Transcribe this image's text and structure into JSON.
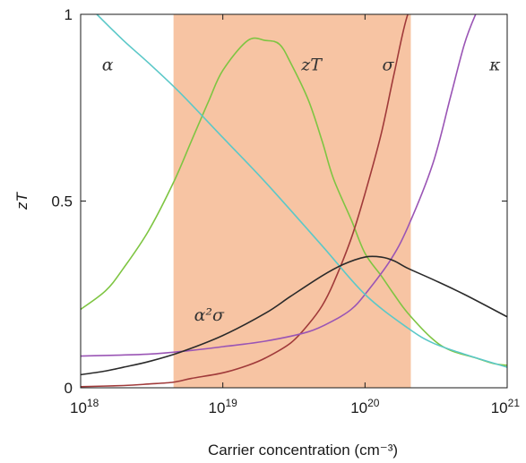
{
  "chart_data": {
    "type": "line",
    "title": "",
    "xlabel": "Carrier concentration (cm⁻³)",
    "ylabel": "zT",
    "x_scale": "log",
    "xlim": [
      1e+18,
      1e+21
    ],
    "ylim": [
      0,
      1
    ],
    "grid": false,
    "legend": "none",
    "x_ticks": [
      {
        "value": 1e+18,
        "base": "10",
        "exp": "18"
      },
      {
        "value": 1e+19,
        "base": "10",
        "exp": "19"
      },
      {
        "value": 1e+20,
        "base": "10",
        "exp": "20"
      },
      {
        "value": 1e+21,
        "base": "10",
        "exp": "21"
      }
    ],
    "y_ticks": [
      {
        "value": 0,
        "label": "0"
      },
      {
        "value": 0.5,
        "label": "0.5"
      },
      {
        "value": 1,
        "label": "1"
      }
    ],
    "shaded_region": {
      "x": [
        4.5e+18,
        2.1e+20
      ],
      "color": "#f7c4a3"
    },
    "series": [
      {
        "label": "zT",
        "color": "#7ec542",
        "x": [
          1e+18,
          1.5e+18,
          2e+18,
          3e+18,
          4.5e+18,
          6e+18,
          8e+18,
          1e+19,
          1.5e+19,
          2e+19,
          2.5e+19,
          3e+19,
          4e+19,
          5e+19,
          6e+19,
          8e+19,
          1e+20,
          1.3e+20,
          1.6e+20,
          2e+20,
          3e+20,
          4e+20,
          6e+20,
          8e+20,
          1e+21
        ],
        "y": [
          0.21,
          0.26,
          0.32,
          0.42,
          0.55,
          0.66,
          0.77,
          0.85,
          0.93,
          0.93,
          0.92,
          0.87,
          0.77,
          0.66,
          0.56,
          0.45,
          0.36,
          0.3,
          0.25,
          0.2,
          0.13,
          0.1,
          0.08,
          0.065,
          0.06
        ]
      },
      {
        "label": "σ",
        "color": "#a03a3a",
        "x": [
          1e+18,
          2e+18,
          3e+18,
          4.5e+18,
          6e+18,
          1e+19,
          1.5e+19,
          2e+19,
          3e+19,
          4e+19,
          5e+19,
          6e+19,
          8e+19,
          1e+20,
          1.3e+20,
          1.6e+20,
          2e+20,
          2.5e+20
        ],
        "y": [
          0.003,
          0.006,
          0.01,
          0.015,
          0.025,
          0.04,
          0.06,
          0.08,
          0.12,
          0.17,
          0.22,
          0.28,
          0.4,
          0.52,
          0.68,
          0.84,
          1.0,
          1.05
        ]
      },
      {
        "label": "κ",
        "color": "#9a55b5",
        "x": [
          1e+18,
          3e+18,
          6e+18,
          1e+19,
          2e+19,
          4e+19,
          6e+19,
          8e+19,
          1e+20,
          1.5e+20,
          2e+20,
          3e+20,
          4e+20,
          5e+20,
          6e+20,
          7e+20
        ],
        "y": [
          0.085,
          0.09,
          0.1,
          0.11,
          0.125,
          0.15,
          0.18,
          0.21,
          0.25,
          0.34,
          0.43,
          0.6,
          0.78,
          0.92,
          1.0,
          1.05
        ]
      },
      {
        "label": "α",
        "color": "#5bc8c8",
        "x": [
          1.3e+18,
          2e+18,
          3e+18,
          5e+18,
          1e+19,
          2e+19,
          5e+19,
          1e+20,
          2e+20,
          3e+20,
          5e+20,
          1e+21
        ],
        "y": [
          1.0,
          0.93,
          0.87,
          0.79,
          0.67,
          0.55,
          0.38,
          0.25,
          0.16,
          0.12,
          0.09,
          0.055
        ]
      },
      {
        "label": "α²σ",
        "color": "#2a2a2a",
        "x": [
          1e+18,
          1.5e+18,
          2e+18,
          3e+18,
          5e+18,
          1e+19,
          2e+19,
          3e+19,
          5e+19,
          7e+19,
          1e+20,
          1.3e+20,
          1.6e+20,
          2e+20,
          3e+20,
          5e+20,
          1e+21
        ],
        "y": [
          0.035,
          0.045,
          0.055,
          0.07,
          0.095,
          0.14,
          0.2,
          0.245,
          0.3,
          0.33,
          0.35,
          0.35,
          0.34,
          0.32,
          0.29,
          0.25,
          0.19
        ]
      }
    ],
    "annotations": [
      {
        "text": "α",
        "series": "α",
        "x": 1.55e+18,
        "y": 0.85
      },
      {
        "text": "zT",
        "series": "zT",
        "x": 4.2e+19,
        "y": 0.85
      },
      {
        "text": "σ",
        "series": "σ",
        "x": 1.45e+20,
        "y": 0.85
      },
      {
        "text": "κ",
        "series": "κ",
        "x": 8.2e+20,
        "y": 0.85
      },
      {
        "text": "α²σ",
        "series": "α²σ",
        "x": 8e+18,
        "y": 0.18
      }
    ]
  }
}
